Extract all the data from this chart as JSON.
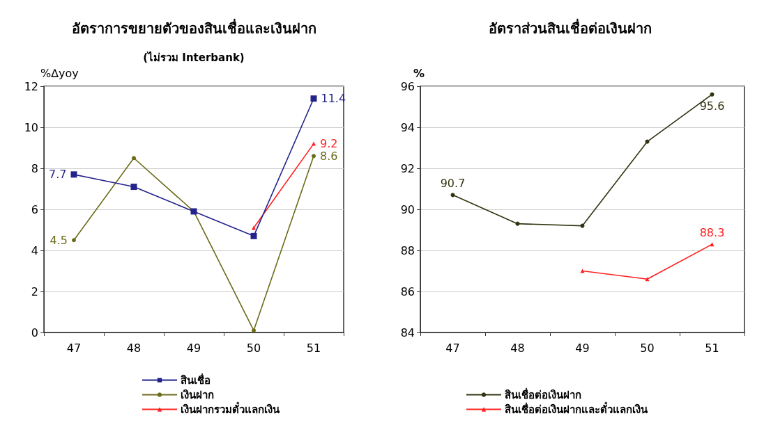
{
  "chart_data": [
    {
      "type": "line",
      "title": "อัตราการขยายตัวของสินเชื่อและเงินฝาก",
      "subtitle": "(ไม่รวม Interbank)",
      "ylabel": "%∆yoy",
      "categories": [
        "47",
        "48",
        "49",
        "50",
        "51"
      ],
      "ylim": [
        0,
        12
      ],
      "yticks": [
        0,
        2,
        4,
        6,
        8,
        10,
        12
      ],
      "grid": "y",
      "legend": "bottom",
      "series": [
        {
          "name": "สินเชื่อ",
          "color": "#23238a",
          "marker": "square",
          "values": [
            7.7,
            7.1,
            5.9,
            4.7,
            11.4
          ],
          "value_labels": [
            "7.7",
            null,
            null,
            null,
            "11.4"
          ]
        },
        {
          "name": "เงินฝาก",
          "color": "#6b6b1a",
          "marker": "circle",
          "values": [
            4.5,
            8.5,
            5.9,
            0.1,
            8.6
          ],
          "value_labels": [
            "4.5",
            null,
            null,
            null,
            "8.6"
          ]
        },
        {
          "name": "เงินฝากรวมตั๋วแลกเงิน",
          "color": "#ff2020",
          "marker": "triangle",
          "values": [
            null,
            null,
            null,
            5.1,
            9.2
          ],
          "value_labels": [
            null,
            null,
            null,
            null,
            "9.2"
          ]
        }
      ]
    },
    {
      "type": "line",
      "title": "อัตราส่วนสินเชื่อต่อเงินฝาก",
      "ylabel": "%",
      "categories": [
        "47",
        "48",
        "49",
        "50",
        "51"
      ],
      "ylim": [
        84,
        96
      ],
      "yticks": [
        84,
        86,
        88,
        90,
        92,
        94,
        96
      ],
      "grid": "y",
      "legend": "bottom",
      "series": [
        {
          "name": "สินเชื่อต่อเงินฝาก",
          "color": "#333311",
          "marker": "circle",
          "values": [
            90.7,
            89.3,
            89.2,
            93.3,
            95.6
          ],
          "value_labels": [
            "90.7",
            null,
            null,
            null,
            "95.6"
          ]
        },
        {
          "name": "สินเชื่อต่อเงินฝากและตั๋วแลกเงิน",
          "color": "#ff2020",
          "marker": "triangle",
          "values": [
            null,
            null,
            87.0,
            86.6,
            88.3
          ],
          "value_labels": [
            null,
            null,
            null,
            null,
            "88.3"
          ]
        }
      ]
    }
  ]
}
